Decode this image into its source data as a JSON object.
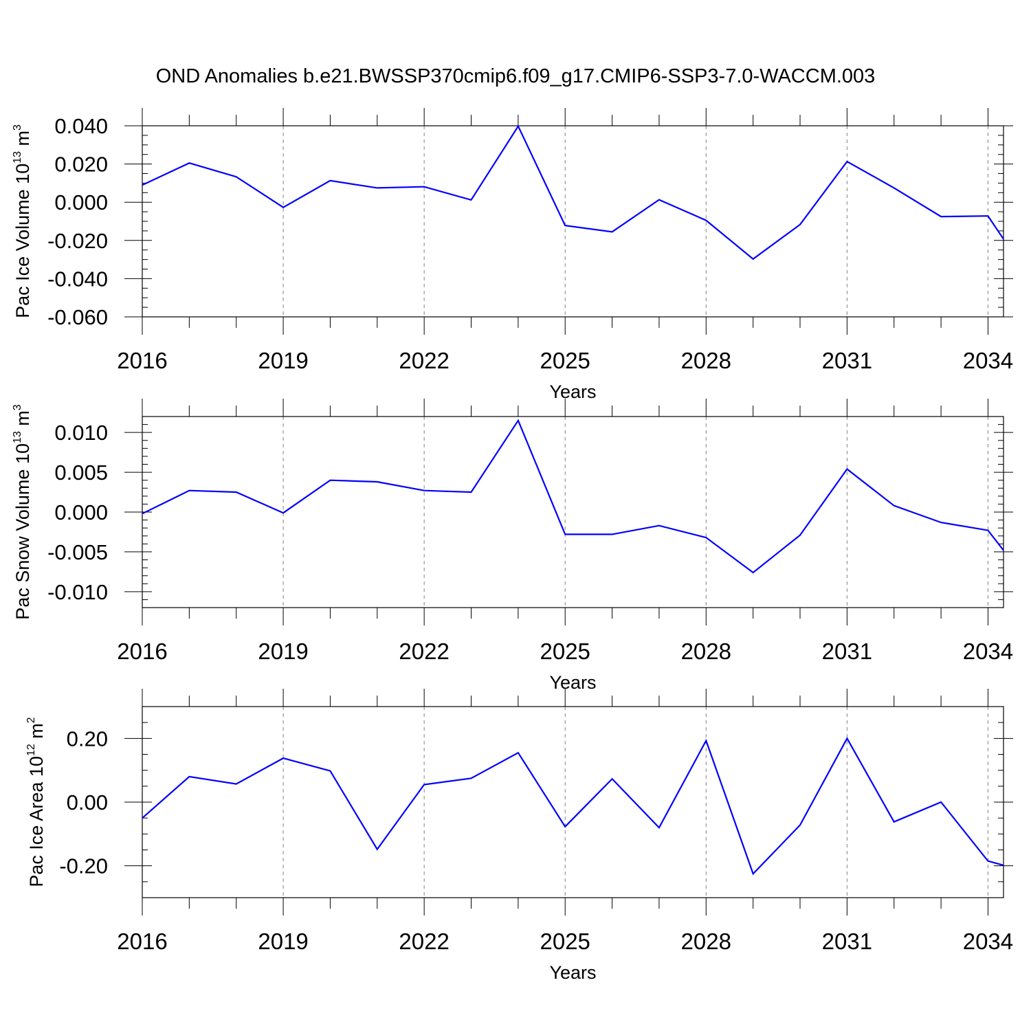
{
  "title": "OND Anomalies b.e21.BWSSP370cmip6.f09_g17.CMIP6-SSP3-7.0-WACCM.003",
  "chart_data": [
    {
      "type": "line",
      "ylabel_prefix": "Pac Ice Volume 10",
      "ylabel_exp": "13",
      "ylabel_unit": " m",
      "ylabel_unit_exp": "3",
      "xlabel": "Years",
      "xlim": [
        2016,
        2034.33
      ],
      "ylim": [
        -0.06,
        0.04
      ],
      "yticks": [
        0.04,
        0.02,
        0.0,
        -0.02,
        -0.04,
        -0.06
      ],
      "yticklabels": [
        "0.040",
        "0.020",
        "0.000",
        "-0.020",
        "-0.040",
        "-0.060"
      ],
      "yminor": 0.005,
      "xticks": [
        2016,
        2019,
        2022,
        2025,
        2028,
        2031,
        2034
      ],
      "xticklabels": [
        "2016",
        "2019",
        "2022",
        "2025",
        "2028",
        "2031",
        "2034"
      ],
      "line_color": "#0000ff",
      "grid": "vertical-dashed",
      "x": [
        2016,
        2017,
        2018,
        2019,
        2020,
        2021,
        2022,
        2023,
        2024,
        2025,
        2026,
        2027,
        2028,
        2029,
        2030,
        2031,
        2032,
        2033,
        2034,
        2035
      ],
      "values": [
        0.009,
        0.0205,
        0.0133,
        -0.0027,
        0.0113,
        0.0075,
        0.0081,
        0.0012,
        0.0398,
        -0.0122,
        -0.0155,
        0.0013,
        -0.0095,
        -0.0297,
        -0.0117,
        0.0213,
        0.0075,
        -0.0075,
        -0.0072,
        -0.0438
      ]
    },
    {
      "type": "line",
      "ylabel_prefix": "Pac Snow Volume 10",
      "ylabel_exp": "13",
      "ylabel_unit": " m",
      "ylabel_unit_exp": "3",
      "xlabel": "Years",
      "xlim": [
        2016,
        2034.33
      ],
      "ylim": [
        -0.012,
        0.012
      ],
      "yticks": [
        0.01,
        0.005,
        0.0,
        -0.005,
        -0.01
      ],
      "yticklabels": [
        "0.010",
        "0.005",
        "0.000",
        "-0.005",
        "-0.010"
      ],
      "yminor": 0.001,
      "xticks": [
        2016,
        2019,
        2022,
        2025,
        2028,
        2031,
        2034
      ],
      "xticklabels": [
        "2016",
        "2019",
        "2022",
        "2025",
        "2028",
        "2031",
        "2034"
      ],
      "line_color": "#0000ff",
      "grid": "vertical-dashed",
      "x": [
        2016,
        2017,
        2018,
        2019,
        2020,
        2021,
        2022,
        2023,
        2024,
        2025,
        2026,
        2027,
        2028,
        2029,
        2030,
        2031,
        2032,
        2033,
        2034,
        2035
      ],
      "values": [
        -0.0002,
        0.0027,
        0.0025,
        -0.0001,
        0.004,
        0.0038,
        0.0027,
        0.0025,
        0.0115,
        -0.0028,
        -0.0028,
        -0.0017,
        -0.0032,
        -0.0076,
        -0.0029,
        0.0054,
        0.0008,
        -0.0013,
        -0.0023,
        -0.0099
      ]
    },
    {
      "type": "line",
      "ylabel_prefix": "Pac Ice Area 10",
      "ylabel_exp": "12",
      "ylabel_unit": " m",
      "ylabel_unit_exp": "2",
      "xlabel": "Years",
      "xlim": [
        2016,
        2034.33
      ],
      "ylim": [
        -0.3,
        0.3
      ],
      "yticks": [
        0.2,
        0.0,
        -0.2
      ],
      "yticklabels": [
        "0.20",
        "0.00",
        "-0.20"
      ],
      "yminor": 0.05,
      "xticks": [
        2016,
        2019,
        2022,
        2025,
        2028,
        2031,
        2034
      ],
      "xticklabels": [
        "2016",
        "2019",
        "2022",
        "2025",
        "2028",
        "2031",
        "2034"
      ],
      "line_color": "#0000ff",
      "grid": "vertical-dashed",
      "x": [
        2016,
        2017,
        2018,
        2019,
        2020,
        2021,
        2022,
        2023,
        2024,
        2025,
        2026,
        2027,
        2028,
        2029,
        2030,
        2031,
        2032,
        2033,
        2034,
        2035
      ],
      "values": [
        -0.05,
        0.08,
        0.057,
        0.138,
        0.098,
        -0.148,
        0.055,
        0.075,
        0.155,
        -0.077,
        0.073,
        -0.08,
        0.193,
        -0.225,
        -0.072,
        0.2,
        -0.062,
        0.0,
        -0.185,
        -0.225
      ]
    }
  ]
}
